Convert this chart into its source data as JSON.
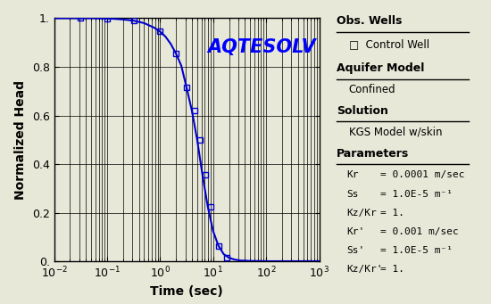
{
  "title": "AQTESOLV",
  "xlabel": "Time (sec)",
  "ylabel": "Normalized Head",
  "xlim": [
    0.01,
    1000
  ],
  "ylim": [
    0.0,
    1.0
  ],
  "bg_color": "#e8e8d8",
  "line_color": "#0000cc",
  "marker_color": "#0000cc",
  "title_color": "#0000ff",
  "text_color": "#000000",
  "obs_wells_label": "Obs. Wells",
  "control_well_label": "□  Control Well",
  "aquifer_model_label": "Aquifer Model",
  "aquifer_type": "Confined",
  "solution_label": "Solution",
  "solution_type": "KGS Model w/skin",
  "parameters_label": "Parameters",
  "param_labels": [
    "Kr",
    "Ss",
    "Kz/Kr",
    "Kr'",
    "Ss'",
    "Kz/Kr'"
  ],
  "param_values": [
    "= 0.0001 m/sec",
    "= 1.0E-5 m⁻¹",
    "= 1.",
    "= 0.001 m/sec",
    "= 1.0E-5 m⁻¹",
    "= 1."
  ],
  "curve_log_times": [
    -2.0,
    -1.7,
    -1.5,
    -1.3,
    -1.1,
    -0.9,
    -0.7,
    -0.5,
    -0.3,
    -0.1,
    0.0,
    0.1,
    0.2,
    0.3,
    0.4,
    0.5,
    0.6,
    0.7,
    0.8,
    0.9,
    1.0,
    1.1,
    1.2,
    1.3,
    1.4,
    1.5,
    1.7,
    2.0,
    2.5,
    3.0
  ],
  "curve_values": [
    1.0,
    1.0,
    1.0,
    1.0,
    0.999,
    0.998,
    0.995,
    0.99,
    0.98,
    0.96,
    0.945,
    0.925,
    0.895,
    0.855,
    0.805,
    0.715,
    0.62,
    0.5,
    0.355,
    0.225,
    0.125,
    0.065,
    0.03,
    0.015,
    0.008,
    0.004,
    0.002,
    0.001,
    0.001,
    0.001
  ],
  "obs_log_times": [
    -1.5,
    -1.0,
    -0.5,
    0.0,
    0.3,
    0.5,
    0.65,
    0.75,
    0.85,
    0.95,
    1.1,
    1.25
  ],
  "obs_values": [
    1.0,
    0.998,
    0.99,
    0.945,
    0.855,
    0.715,
    0.62,
    0.5,
    0.355,
    0.225,
    0.065,
    0.015
  ]
}
